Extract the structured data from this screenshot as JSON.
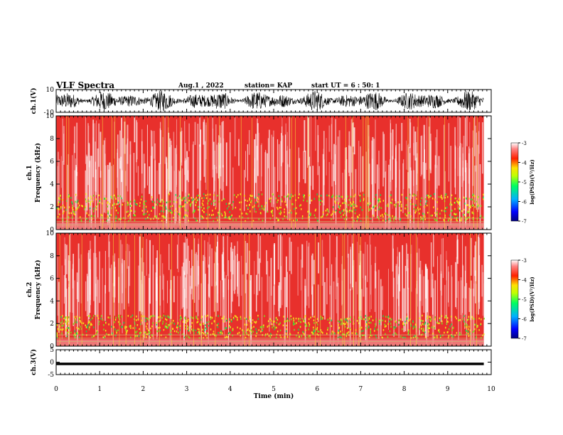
{
  "header": {
    "title": "VLF Spectra",
    "date": "Aug.1 , 2022",
    "station": "station= KAP",
    "start": "start UT = 6 : 50: 1"
  },
  "colors": {
    "background": "#ffffff",
    "spectrogram_bg": "#e8302c",
    "waveform": "#000000"
  },
  "chart_data": [
    {
      "type": "line",
      "name": "ch1-waveform",
      "ylabel": "ch.1(V)",
      "ylim": [
        -10,
        10
      ],
      "yticks": [
        "10",
        "-10"
      ],
      "x": "time (min)",
      "xlim": [
        0,
        10
      ],
      "description_values": {
        "amplitude_range": [
          -10,
          10
        ],
        "data_extent_min": 9.83
      }
    },
    {
      "type": "heatmap",
      "name": "ch1-spectrogram",
      "ylabel": "ch.1\nFrequency (kHz)",
      "ylim": [
        0,
        10
      ],
      "yticks": [
        "0",
        "2",
        "4",
        "6",
        "8",
        "10"
      ],
      "xlim": [
        0,
        10
      ],
      "colorbar": {
        "label": "log(PSD)(V²/Hz)",
        "ticks": [
          "-3",
          "-4",
          "-5",
          "-6",
          "-7"
        ],
        "range": [
          -7,
          -3
        ]
      },
      "low_band_khz": [
        0.8,
        3.2
      ]
    },
    {
      "type": "heatmap",
      "name": "ch2-spectrogram",
      "ylabel": "ch.2\nFrequency (kHz)",
      "ylim": [
        0,
        10
      ],
      "yticks": [
        "0",
        "2",
        "4",
        "6",
        "8",
        "10"
      ],
      "xlim": [
        0,
        10
      ],
      "colorbar": {
        "label": "log(PSD)(V²/Hz)",
        "ticks": [
          "-3",
          "-4",
          "-5",
          "-6",
          "-7"
        ],
        "range": [
          -7,
          -3
        ]
      },
      "low_band_khz": [
        0.8,
        2.8
      ]
    },
    {
      "type": "line",
      "name": "ch3-waveform",
      "ylabel": "ch.3(V)",
      "ylim": [
        -5,
        5
      ],
      "yticks": [
        "5",
        "0",
        "-5"
      ],
      "xlim": [
        0,
        10
      ],
      "xlabel": "Time (min)",
      "xticks": [
        "0",
        "1",
        "2",
        "3",
        "4",
        "5",
        "6",
        "7",
        "8",
        "9",
        "10"
      ],
      "level_band_v": [
        -1.2,
        -0.2
      ]
    }
  ]
}
